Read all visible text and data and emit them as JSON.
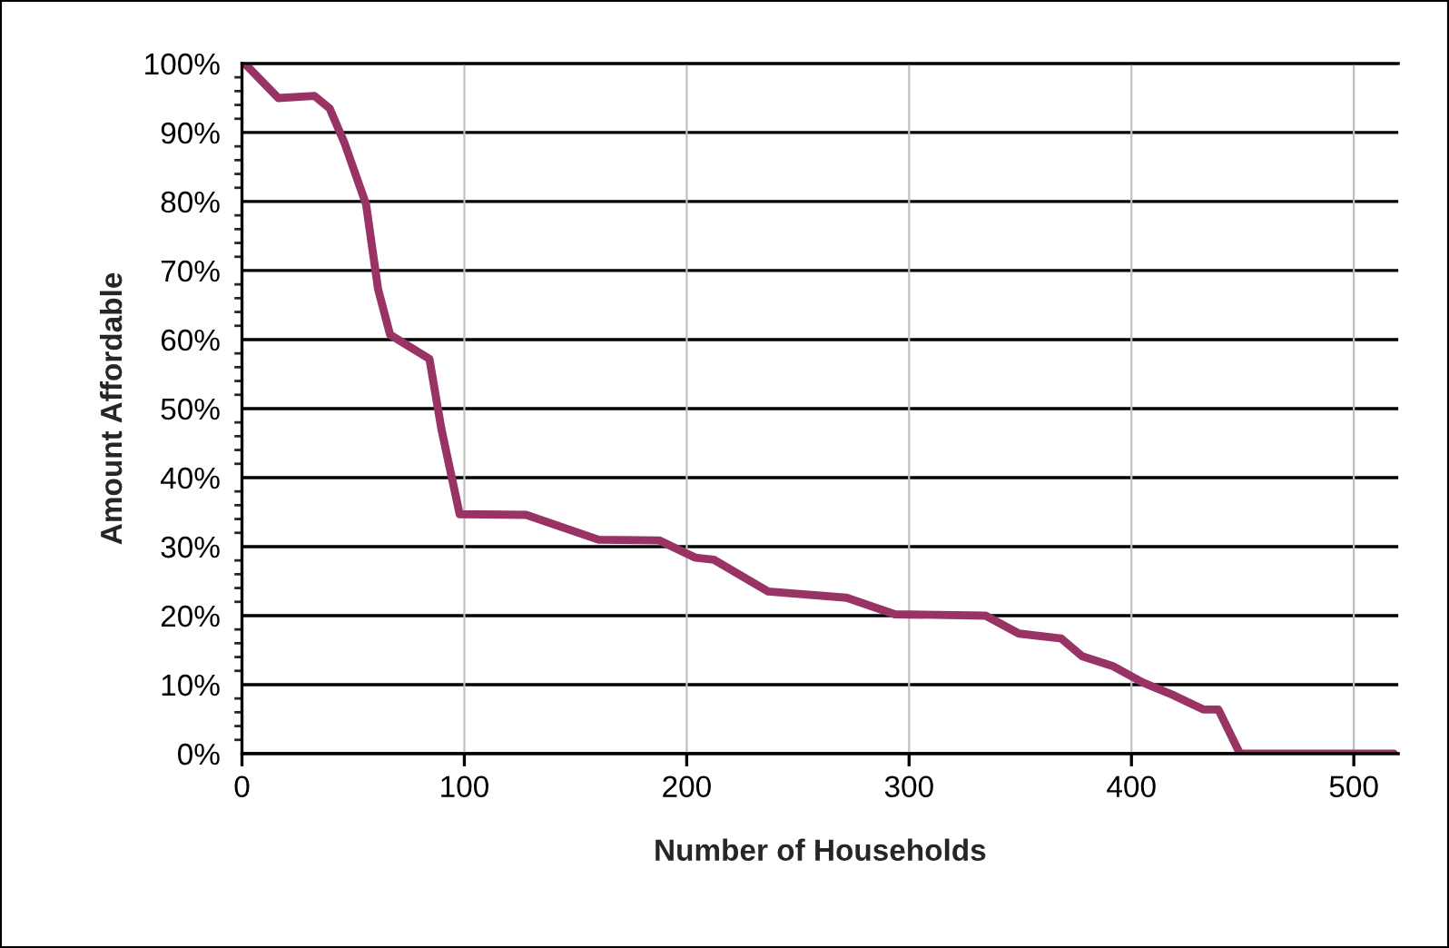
{
  "chart_data": {
    "type": "line",
    "xlabel": "Number of Households",
    "ylabel": "Amount Affordable",
    "series": [
      {
        "color": "#993366",
        "x": [
          0,
          1.2,
          16.3,
          32.6,
          39.4,
          46.2,
          55.8,
          61.2,
          66.6,
          84.3,
          89.7,
          97.9,
          127.8,
          160.4,
          187.6,
          203.9,
          212.2,
          236.6,
          271.9,
          293.6,
          334.4,
          349.4,
          368.4,
          377.9,
          391.5,
          405.1,
          418.7,
          432.3,
          439.1,
          448.8,
          457,
          518
        ],
        "values": [
          100,
          100,
          95,
          95.3,
          93.5,
          88.4,
          79.6,
          67.3,
          60.7,
          57.2,
          47,
          34.7,
          34.6,
          31,
          30.9,
          28.4,
          28.1,
          23.5,
          22.6,
          20.2,
          20,
          17.4,
          16.7,
          14.1,
          12.7,
          10.3,
          8.5,
          6.4,
          6.4,
          0,
          0,
          0
        ]
      }
    ],
    "xlim": [
      0,
      520
    ],
    "xticks": [
      0,
      100,
      200,
      300,
      400,
      500
    ],
    "ylim": [
      0,
      100
    ],
    "yticks": [
      {
        "value": 0,
        "label": "0%"
      },
      {
        "value": 10,
        "label": "10%"
      },
      {
        "value": 20,
        "label": "20%"
      },
      {
        "value": 30,
        "label": "30%"
      },
      {
        "value": 40,
        "label": "40%"
      },
      {
        "value": 50,
        "label": "50%"
      },
      {
        "value": 60,
        "label": "60%"
      },
      {
        "value": 70,
        "label": "70%"
      },
      {
        "value": 80,
        "label": "80%"
      },
      {
        "value": 90,
        "label": "90%"
      },
      {
        "value": 100,
        "label": "100%"
      }
    ],
    "grid": true,
    "marker": "none",
    "line_style": "solid"
  }
}
